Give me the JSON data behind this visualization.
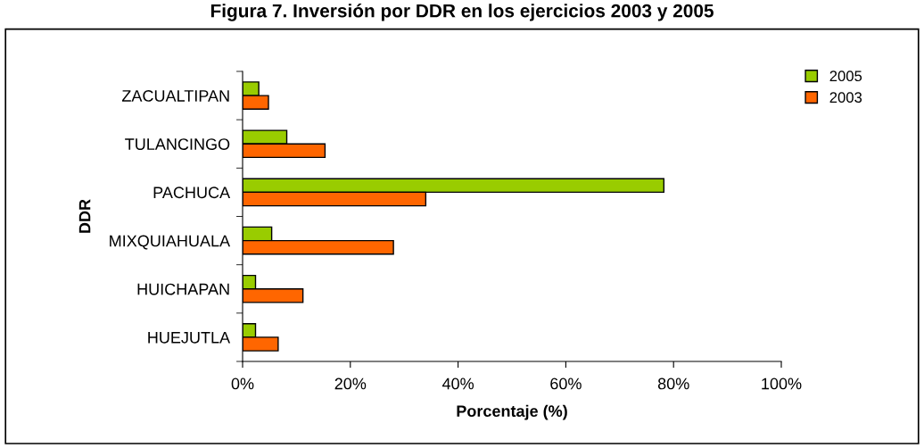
{
  "chart_data": {
    "type": "bar",
    "orientation": "horizontal",
    "title": "Figura 7. Inversión por DDR en los ejercicios 2003 y 2005",
    "xlabel": "Porcentaje (%)",
    "ylabel": "DDR",
    "categories": [
      "ZACUALTIPAN",
      "TULANCINGO",
      "PACHUCA",
      "MIXQUIAHUALA",
      "HUICHAPAN",
      "HUEJUTLA"
    ],
    "series": [
      {
        "name": "2005",
        "color": "#99cc00",
        "values": [
          3.0,
          8.2,
          78.2,
          5.4,
          2.4,
          2.4
        ]
      },
      {
        "name": "2003",
        "color": "#ff6600",
        "values": [
          4.8,
          15.3,
          34.0,
          28.0,
          11.2,
          6.6
        ]
      }
    ],
    "xlim": [
      0,
      100
    ],
    "xticks": [
      {
        "value": 0,
        "label": "0%"
      },
      {
        "value": 20,
        "label": "20%"
      },
      {
        "value": 40,
        "label": "40%"
      },
      {
        "value": 60,
        "label": "60%"
      },
      {
        "value": 80,
        "label": "80%"
      },
      {
        "value": 100,
        "label": "100%"
      }
    ],
    "grid": false,
    "legend": "top right"
  }
}
